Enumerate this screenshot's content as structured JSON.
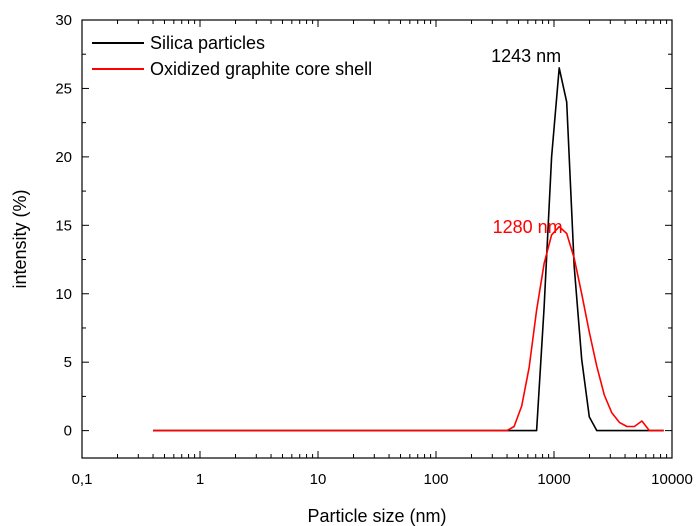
{
  "chart_data": {
    "type": "line",
    "xscale": "log",
    "xlabel": "Particle size (nm)",
    "ylabel": "intensity (%)",
    "xlim": [
      0.1,
      10000
    ],
    "ylim": [
      -2,
      30
    ],
    "x_ticks": [
      {
        "value": 0.1,
        "label": "0,1"
      },
      {
        "value": 1,
        "label": "1"
      },
      {
        "value": 10,
        "label": "10"
      },
      {
        "value": 100,
        "label": "100"
      },
      {
        "value": 1000,
        "label": "1000"
      },
      {
        "value": 10000,
        "label": "10000"
      }
    ],
    "y_ticks": [
      0,
      5,
      10,
      15,
      20,
      25,
      30
    ],
    "grid": false,
    "legend_position": "top-left",
    "series": [
      {
        "name": "Silica particles",
        "color": "#000000",
        "x": [
          0.4,
          100,
          500,
          712,
          825,
          955,
          1106,
          1281,
          1484,
          1718,
          1990,
          2305,
          8500
        ],
        "y": [
          0,
          0,
          0,
          0,
          9,
          20,
          26.5,
          24,
          12,
          5.2,
          1,
          0,
          0
        ]
      },
      {
        "name": "Oxidized graphite core shell",
        "color": "#ff0000",
        "x": [
          0.4,
          100,
          400,
          459,
          532,
          615,
          712,
          825,
          955,
          1106,
          1281,
          1484,
          1718,
          1990,
          2305,
          2670,
          3090,
          3580,
          4150,
          4800,
          5560,
          6440,
          7000,
          8500
        ],
        "y": [
          0,
          0,
          0,
          0.3,
          1.8,
          4.6,
          8.8,
          12.2,
          14.3,
          14.9,
          14.4,
          12.6,
          10,
          7.2,
          4.7,
          2.6,
          1.3,
          0.6,
          0.3,
          0.3,
          0.7,
          0,
          0,
          0
        ]
      }
    ],
    "annotations": [
      {
        "text": "1243 nm",
        "x": 1243,
        "y": 24,
        "color": "#000000"
      },
      {
        "text": "1280 nm",
        "x": 1280,
        "y": 14,
        "color": "#ff0000"
      }
    ]
  }
}
